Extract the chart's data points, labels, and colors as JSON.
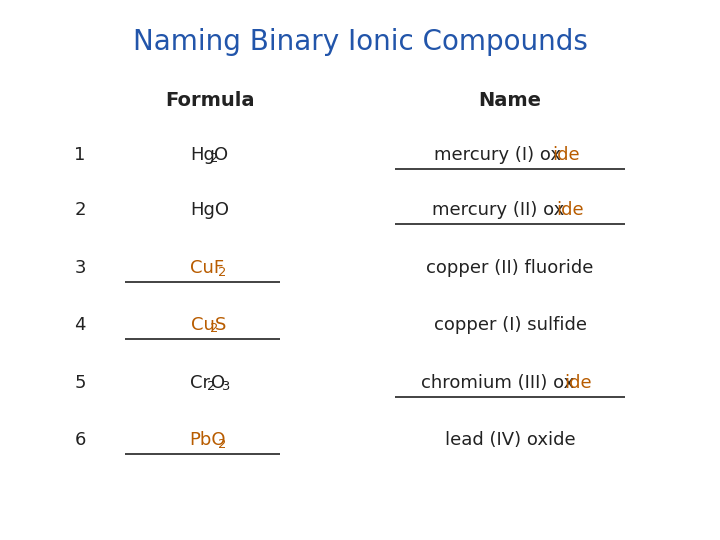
{
  "title": "Naming Binary Ionic Compounds",
  "title_color": "#2255AA",
  "title_fontsize": 20,
  "background_color": "#ffffff",
  "header_formula": "Formula",
  "header_name": "Name",
  "header_fontsize": 14,
  "row_fontsize": 13,
  "rows": [
    {
      "number": "1",
      "formula_parts": [
        {
          "text": "Hg",
          "sub": false,
          "color": "#222222"
        },
        {
          "text": "2",
          "sub": true,
          "color": "#222222"
        },
        {
          "text": "O",
          "sub": false,
          "color": "#222222"
        }
      ],
      "formula_underline": false,
      "name_segments": [
        {
          "text": "mercury (I) ox",
          "color": "#222222"
        },
        {
          "text": "ide",
          "color": "#B85C00"
        }
      ],
      "name_underline": true
    },
    {
      "number": "2",
      "formula_parts": [
        {
          "text": "HgO",
          "sub": false,
          "color": "#222222"
        }
      ],
      "formula_underline": false,
      "name_segments": [
        {
          "text": "mercury (II) ox",
          "color": "#222222"
        },
        {
          "text": "ide",
          "color": "#B85C00"
        }
      ],
      "name_underline": true
    },
    {
      "number": "3",
      "formula_parts": [
        {
          "text": "CuF",
          "sub": false,
          "color": "#B85C00"
        },
        {
          "text": "2",
          "sub": true,
          "color": "#B85C00"
        }
      ],
      "formula_underline": true,
      "name_segments": [
        {
          "text": "copper (II) fluoride",
          "color": "#222222"
        }
      ],
      "name_underline": false
    },
    {
      "number": "4",
      "formula_parts": [
        {
          "text": "Cu",
          "sub": false,
          "color": "#B85C00"
        },
        {
          "text": "2",
          "sub": true,
          "color": "#B85C00"
        },
        {
          "text": "S",
          "sub": false,
          "color": "#B85C00"
        }
      ],
      "formula_underline": true,
      "name_segments": [
        {
          "text": "copper (I) sulfide",
          "color": "#222222"
        }
      ],
      "name_underline": false
    },
    {
      "number": "5",
      "formula_parts": [
        {
          "text": "Cr",
          "sub": false,
          "color": "#222222"
        },
        {
          "text": "2",
          "sub": true,
          "color": "#222222"
        },
        {
          "text": "O",
          "sub": false,
          "color": "#222222"
        },
        {
          "text": "3",
          "sub": true,
          "color": "#222222"
        }
      ],
      "formula_underline": false,
      "name_segments": [
        {
          "text": "chromium (III) ox",
          "color": "#222222"
        },
        {
          "text": "ide",
          "color": "#B85C00"
        }
      ],
      "name_underline": true
    },
    {
      "number": "6",
      "formula_parts": [
        {
          "text": "PbO",
          "sub": false,
          "color": "#B85C00"
        },
        {
          "text": "2",
          "sub": true,
          "color": "#B85C00"
        }
      ],
      "formula_underline": true,
      "name_segments": [
        {
          "text": "lead (IV) oxide",
          "color": "#222222"
        }
      ],
      "name_underline": false
    }
  ]
}
